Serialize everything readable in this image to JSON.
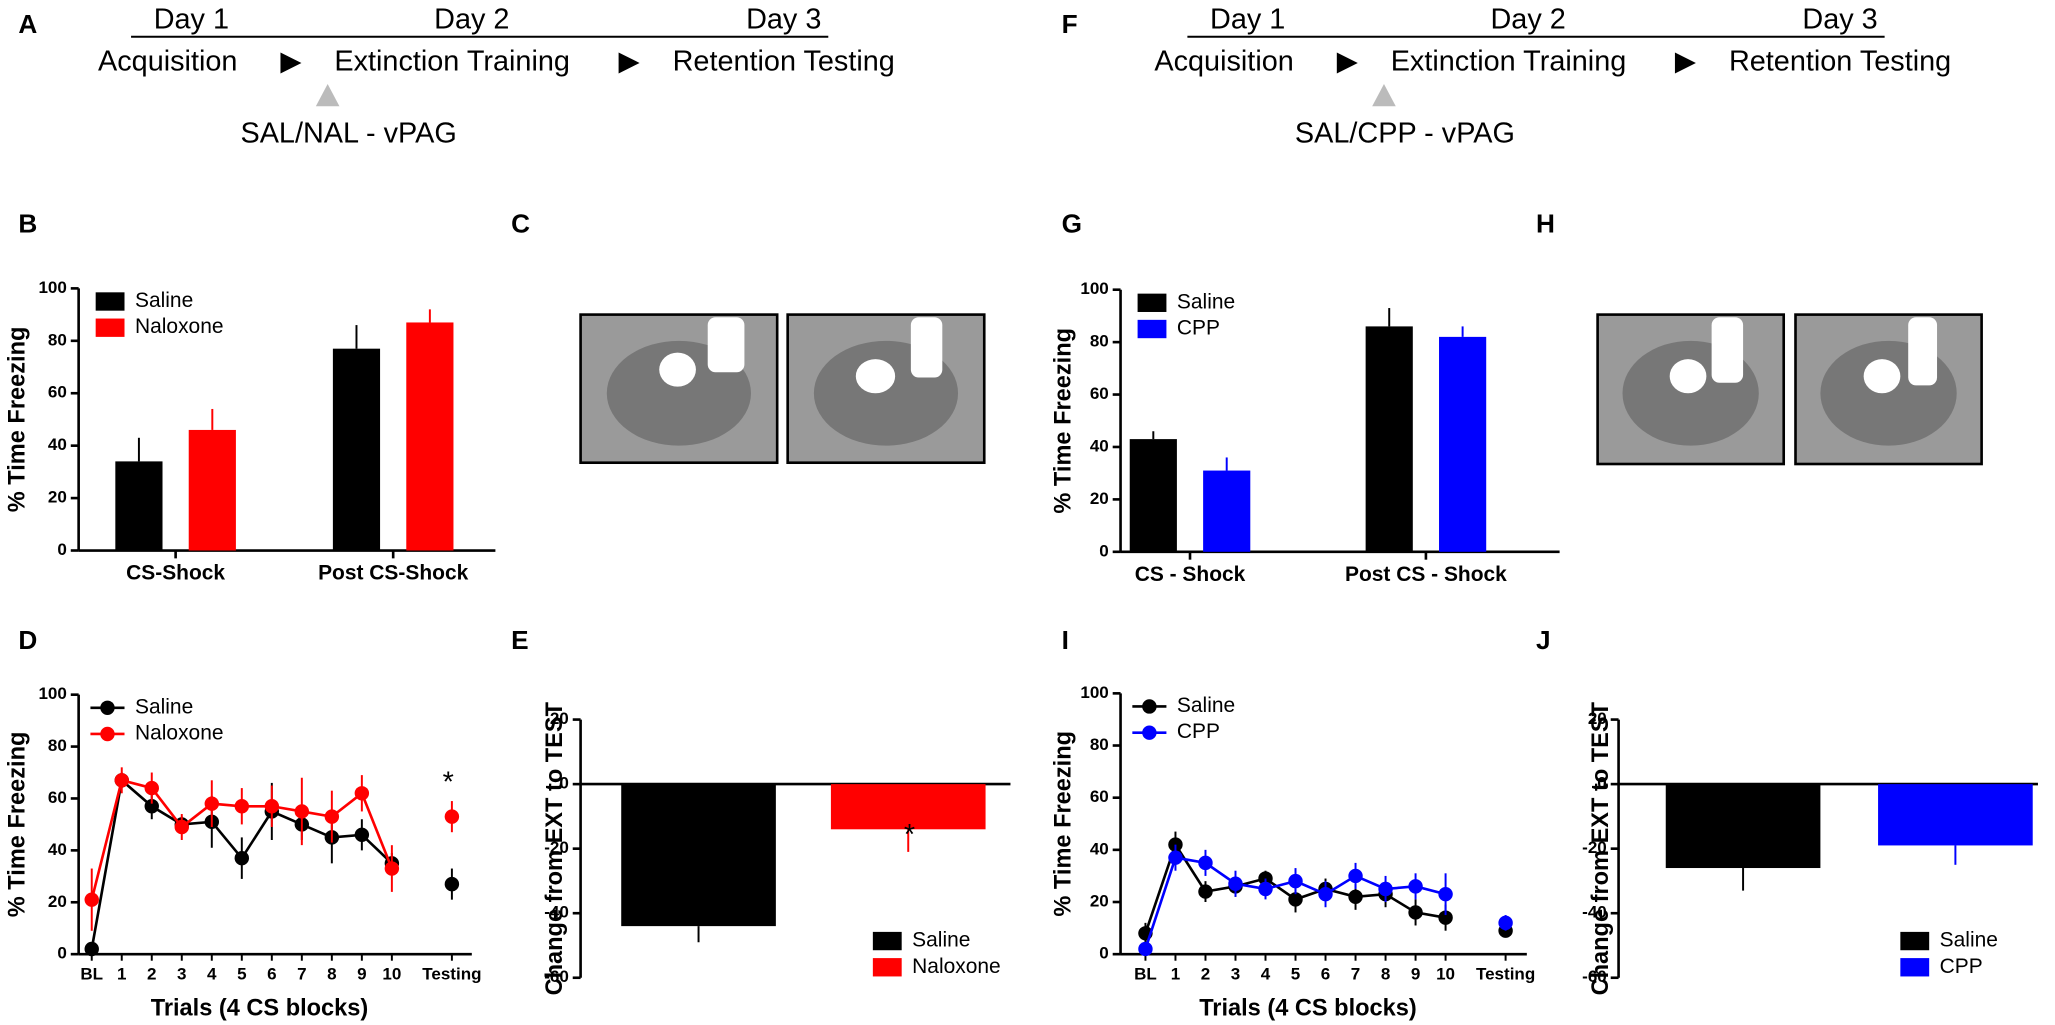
{
  "panels": [
    "A",
    "B",
    "C",
    "D",
    "E",
    "F",
    "G",
    "H",
    "I",
    "J"
  ],
  "timelines": [
    {
      "days": [
        "Day 1",
        "Day 2",
        "Day 3"
      ],
      "stages": [
        "Acquisition",
        "Extinction Training",
        "Retention Testing"
      ],
      "injection": "SAL/NAL - vPAG"
    },
    {
      "days": [
        "Day 1",
        "Day 2",
        "Day 3"
      ],
      "stages": [
        "Acquisition",
        "Extinction Training",
        "Retention Testing"
      ],
      "injection": "SAL/CPP - vPAG"
    }
  ],
  "chart_data": [
    {
      "type": "bar",
      "ylabel": "% Time Freezing",
      "categories": [
        "CS-Shock",
        "Post CS-Shock"
      ],
      "series": [
        {
          "name": "Saline",
          "color": "#000000",
          "values": [
            34,
            77
          ],
          "errors": [
            9,
            9
          ]
        },
        {
          "name": "Naloxone",
          "color": "#ff0000",
          "values": [
            46,
            87
          ],
          "errors": [
            8,
            5
          ]
        }
      ],
      "ylim": [
        0,
        100
      ],
      "yticks": [
        0,
        20,
        40,
        60,
        80,
        100
      ],
      "legend": "top-left"
    },
    {
      "type": "line",
      "ylabel": "% Time Freezing",
      "xlabel": "Trials (4 CS blocks)",
      "annotation": "*",
      "categories": [
        "BL",
        "1",
        "2",
        "3",
        "4",
        "5",
        "6",
        "7",
        "8",
        "9",
        "10",
        null,
        "Testing"
      ],
      "series": [
        {
          "name": "Saline",
          "color": "#000000",
          "values": [
            2,
            67,
            57,
            50,
            51,
            37,
            55,
            50,
            45,
            46,
            35,
            null,
            27
          ],
          "errors": [
            1,
            3,
            5,
            3,
            10,
            8,
            11,
            6,
            10,
            6,
            4,
            null,
            6
          ]
        },
        {
          "name": "Naloxone",
          "color": "#ff0000",
          "values": [
            21,
            67,
            64,
            49,
            58,
            57,
            57,
            55,
            53,
            62,
            33,
            null,
            53
          ],
          "errors": [
            12,
            5,
            6,
            5,
            9,
            7,
            8,
            13,
            10,
            7,
            9,
            null,
            6
          ]
        }
      ],
      "ylim": [
        0,
        100
      ],
      "yticks": [
        0,
        20,
        40,
        60,
        80,
        100
      ],
      "legend": "top-left"
    },
    {
      "type": "bar",
      "ylabel": "Change from EXT to TEST",
      "annotation": "*",
      "categories": [
        null
      ],
      "series": [
        {
          "name": "Saline",
          "color": "#000000",
          "values": [
            -44
          ],
          "errors": [
            5
          ]
        },
        {
          "name": "Naloxone",
          "color": "#ff0000",
          "values": [
            -14
          ],
          "errors": [
            7
          ]
        }
      ],
      "ylim": [
        -60,
        20
      ],
      "yticks": [
        -60,
        -40,
        -20,
        0,
        20
      ],
      "legend": "bottom-right"
    },
    {
      "type": "bar",
      "ylabel": "% Time Freezing",
      "categories": [
        "CS - Shock",
        "Post CS - Shock"
      ],
      "series": [
        {
          "name": "Saline",
          "color": "#000000",
          "values": [
            43,
            86
          ],
          "errors": [
            3,
            7
          ]
        },
        {
          "name": "CPP",
          "color": "#0000ff",
          "values": [
            31,
            82
          ],
          "errors": [
            5,
            4
          ]
        }
      ],
      "ylim": [
        0,
        100
      ],
      "yticks": [
        0,
        20,
        40,
        60,
        80,
        100
      ],
      "legend": "top-left"
    },
    {
      "type": "line",
      "ylabel": "% Time Freezing",
      "xlabel": "Trials (4 CS blocks)",
      "categories": [
        "BL",
        "1",
        "2",
        "3",
        "4",
        "5",
        "6",
        "7",
        "8",
        "9",
        "10",
        null,
        "Testing"
      ],
      "series": [
        {
          "name": "Saline",
          "color": "#000000",
          "values": [
            8,
            42,
            24,
            26,
            29,
            21,
            25,
            22,
            23,
            16,
            14,
            null,
            9
          ],
          "errors": [
            4,
            5,
            4,
            4,
            3,
            5,
            4,
            5,
            5,
            5,
            5,
            null,
            2
          ]
        },
        {
          "name": "CPP",
          "color": "#0000ff",
          "values": [
            2,
            37,
            35,
            27,
            25,
            28,
            23,
            30,
            25,
            26,
            23,
            null,
            12
          ],
          "errors": [
            1,
            5,
            5,
            5,
            4,
            5,
            5,
            5,
            5,
            5,
            8,
            null,
            3
          ]
        }
      ],
      "ylim": [
        0,
        100
      ],
      "yticks": [
        0,
        20,
        40,
        60,
        80,
        100
      ],
      "legend": "top-left"
    },
    {
      "type": "bar",
      "ylabel": "Change from EXT to TEST",
      "categories": [
        null
      ],
      "series": [
        {
          "name": "Saline",
          "color": "#000000",
          "values": [
            -26
          ],
          "errors": [
            7
          ]
        },
        {
          "name": "CPP",
          "color": "#0000ff",
          "values": [
            -19
          ],
          "errors": [
            6
          ]
        }
      ],
      "ylim": [
        -60,
        20
      ],
      "yticks": [
        -60,
        -40,
        -20,
        0,
        20
      ],
      "legend": "bottom-right"
    }
  ]
}
